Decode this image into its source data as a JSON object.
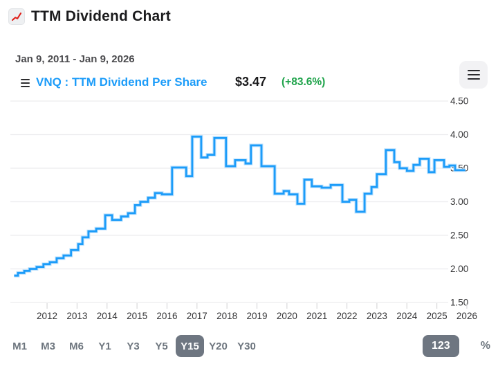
{
  "header": {
    "title": "TTM Dividend Chart",
    "icon": "chart-increasing-icon",
    "icon_color": "#df211b"
  },
  "date_range": "Jan 9, 2011 - Jan 9, 2026",
  "legend": {
    "series_label": "VNQ : TTM Dividend Per Share",
    "value": "$3.47",
    "change": "(+83.6%)",
    "series_color": "#1c9cf9",
    "change_color": "#1ea34a"
  },
  "menu_button": {
    "icon": "hamburger-icon"
  },
  "chart_data": {
    "type": "line",
    "step": true,
    "title": "TTM Dividend Chart",
    "xlabel": "",
    "ylabel": "",
    "grid": "horizontal",
    "legend_position": "top",
    "xlim": [
      2010.9,
      2026.05
    ],
    "ylim": [
      1.5,
      4.5
    ],
    "x_ticks": [
      {
        "label": "2012",
        "value": 2012
      },
      {
        "label": "2013",
        "value": 2013
      },
      {
        "label": "2014",
        "value": 2014
      },
      {
        "label": "2015",
        "value": 2015
      },
      {
        "label": "2016",
        "value": 2016
      },
      {
        "label": "2017",
        "value": 2017
      },
      {
        "label": "2018",
        "value": 2018
      },
      {
        "label": "2019",
        "value": 2019
      },
      {
        "label": "2020",
        "value": 2020
      },
      {
        "label": "2021",
        "value": 2021
      },
      {
        "label": "2022",
        "value": 2022
      },
      {
        "label": "2023",
        "value": 2023
      },
      {
        "label": "2024",
        "value": 2024
      },
      {
        "label": "2025",
        "value": 2025
      },
      {
        "label": "2026",
        "value": 2026
      }
    ],
    "y_ticks": [
      {
        "label": "4.50",
        "value": 4.5
      },
      {
        "label": "4.00",
        "value": 4.0
      },
      {
        "label": "3.50",
        "value": 3.5
      },
      {
        "label": "3.00",
        "value": 3.0
      },
      {
        "label": "2.50",
        "value": 2.5
      },
      {
        "label": "2.00",
        "value": 2.0
      },
      {
        "label": "1.50",
        "value": 1.5
      }
    ],
    "series": [
      {
        "name": "VNQ : TTM Dividend Per Share",
        "color": "#1c9cf9",
        "halo_color": "#bfe2fd",
        "end_x": 2025.95,
        "last_value": 3.47,
        "points": [
          [
            2010.9,
            1.9
          ],
          [
            2011.03,
            1.94
          ],
          [
            2011.24,
            1.97
          ],
          [
            2011.42,
            2.0
          ],
          [
            2011.65,
            2.03
          ],
          [
            2011.88,
            2.07
          ],
          [
            2012.09,
            2.1
          ],
          [
            2012.32,
            2.16
          ],
          [
            2012.55,
            2.2
          ],
          [
            2012.8,
            2.28
          ],
          [
            2013.04,
            2.37
          ],
          [
            2013.18,
            2.47
          ],
          [
            2013.38,
            2.56
          ],
          [
            2013.64,
            2.6
          ],
          [
            2013.94,
            2.8
          ],
          [
            2014.17,
            2.73
          ],
          [
            2014.47,
            2.78
          ],
          [
            2014.7,
            2.83
          ],
          [
            2014.93,
            2.95
          ],
          [
            2015.11,
            3.0
          ],
          [
            2015.37,
            3.06
          ],
          [
            2015.6,
            3.13
          ],
          [
            2015.83,
            3.11
          ],
          [
            2016.17,
            3.51
          ],
          [
            2016.64,
            3.38
          ],
          [
            2016.84,
            3.97
          ],
          [
            2017.14,
            3.66
          ],
          [
            2017.35,
            3.7
          ],
          [
            2017.58,
            3.95
          ],
          [
            2017.97,
            3.53
          ],
          [
            2018.27,
            3.62
          ],
          [
            2018.62,
            3.57
          ],
          [
            2018.8,
            3.84
          ],
          [
            2019.15,
            3.53
          ],
          [
            2019.59,
            3.12
          ],
          [
            2019.89,
            3.16
          ],
          [
            2020.07,
            3.11
          ],
          [
            2020.35,
            2.97
          ],
          [
            2020.58,
            3.33
          ],
          [
            2020.83,
            3.23
          ],
          [
            2021.16,
            3.21
          ],
          [
            2021.46,
            3.25
          ],
          [
            2021.85,
            3.0
          ],
          [
            2022.08,
            3.03
          ],
          [
            2022.31,
            2.85
          ],
          [
            2022.59,
            3.12
          ],
          [
            2022.82,
            3.22
          ],
          [
            2023.0,
            3.41
          ],
          [
            2023.3,
            3.77
          ],
          [
            2023.58,
            3.59
          ],
          [
            2023.76,
            3.5
          ],
          [
            2024.0,
            3.46
          ],
          [
            2024.22,
            3.55
          ],
          [
            2024.43,
            3.64
          ],
          [
            2024.73,
            3.44
          ],
          [
            2024.92,
            3.62
          ],
          [
            2025.24,
            3.52
          ],
          [
            2025.42,
            3.54
          ],
          [
            2025.61,
            3.47
          ]
        ]
      }
    ]
  },
  "toolbar": {
    "ranges": [
      {
        "label": "M1",
        "selected": false
      },
      {
        "label": "M3",
        "selected": false
      },
      {
        "label": "M6",
        "selected": false
      },
      {
        "label": "Y1",
        "selected": false
      },
      {
        "label": "Y3",
        "selected": false
      },
      {
        "label": "Y5",
        "selected": false
      },
      {
        "label": "Y15",
        "selected": true
      },
      {
        "label": "Y20",
        "selected": false
      },
      {
        "label": "Y30",
        "selected": false
      }
    ],
    "format_buttons": [
      {
        "label": "123",
        "selected": true
      },
      {
        "label": "%",
        "selected": false
      }
    ]
  },
  "colors": {
    "grid": "#ececee",
    "tick": "#d8d8da",
    "axis_text": "#333335",
    "toolbar_text": "#6d757e",
    "toolbar_selected_bg": "#6e7681"
  }
}
